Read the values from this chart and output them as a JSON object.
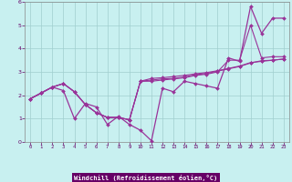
{
  "xlabel": "Windchill (Refroidissement éolien,°C)",
  "background_color": "#c8f0f0",
  "grid_color": "#a0cece",
  "line_color": "#993399",
  "xlim": [
    -0.5,
    23.5
  ],
  "ylim": [
    0,
    6
  ],
  "xticks": [
    0,
    1,
    2,
    3,
    4,
    5,
    6,
    7,
    8,
    9,
    10,
    11,
    12,
    13,
    14,
    15,
    16,
    17,
    18,
    19,
    20,
    21,
    22,
    23
  ],
  "yticks": [
    0,
    1,
    2,
    3,
    4,
    5,
    6
  ],
  "series1": [
    1.85,
    2.1,
    2.35,
    2.2,
    1.0,
    1.65,
    1.5,
    0.75,
    1.1,
    0.75,
    0.5,
    0.05,
    2.3,
    2.15,
    2.6,
    2.5,
    2.4,
    2.3,
    3.6,
    3.45,
    5.8,
    4.65,
    5.3,
    5.3
  ],
  "series2": [
    1.85,
    2.1,
    2.35,
    2.5,
    2.15,
    1.6,
    1.25,
    1.05,
    1.05,
    0.95,
    2.6,
    2.6,
    2.65,
    2.7,
    2.75,
    2.85,
    2.9,
    3.0,
    3.5,
    3.5,
    5.0,
    3.6,
    3.65,
    3.65
  ],
  "series3": [
    1.85,
    2.1,
    2.35,
    2.5,
    2.15,
    1.6,
    1.25,
    1.05,
    1.05,
    0.95,
    2.6,
    2.65,
    2.7,
    2.72,
    2.78,
    2.88,
    2.93,
    3.03,
    3.13,
    3.23,
    3.38,
    3.48,
    3.5,
    3.55
  ],
  "series4": [
    1.85,
    2.1,
    2.35,
    2.5,
    2.15,
    1.6,
    1.25,
    1.05,
    1.05,
    0.95,
    2.6,
    2.72,
    2.75,
    2.8,
    2.85,
    2.92,
    2.97,
    3.05,
    3.15,
    3.25,
    3.4,
    3.45,
    3.5,
    3.55
  ]
}
